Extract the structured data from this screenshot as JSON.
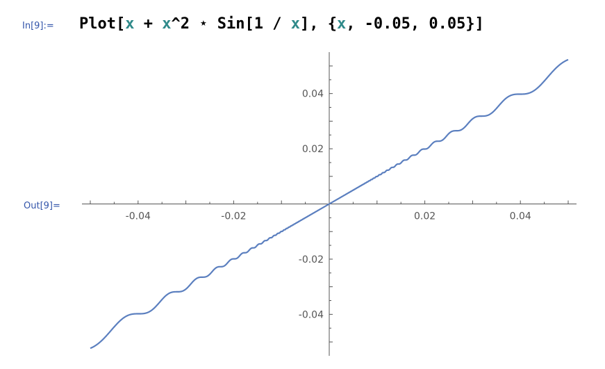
{
  "cell": {
    "in_label": "In[9]:=",
    "out_label": "Out[9]=",
    "input_tokens": [
      {
        "text": "Plot[",
        "kind": "func"
      },
      {
        "text": "x",
        "kind": "var"
      },
      {
        "text": " + ",
        "kind": "func"
      },
      {
        "text": "x",
        "kind": "var"
      },
      {
        "text": "^2 ",
        "kind": "func"
      },
      {
        "text": "⋆",
        "kind": "func"
      },
      {
        "text": " Sin[1 / ",
        "kind": "func"
      },
      {
        "text": "x",
        "kind": "var"
      },
      {
        "text": "], {",
        "kind": "func"
      },
      {
        "text": "x",
        "kind": "var"
      },
      {
        "text": ", -0.05, 0.05}]",
        "kind": "func"
      }
    ]
  },
  "chart_data": {
    "type": "line",
    "function": "x + x^2 * Sin[1/x]",
    "xlim": [
      -0.05,
      0.05
    ],
    "ylim": [
      -0.0525,
      0.0525
    ],
    "x_ticks": [
      {
        "value": -0.04,
        "label": "-0.04"
      },
      {
        "value": -0.02,
        "label": "-0.02"
      },
      {
        "value": 0.02,
        "label": "0.02"
      },
      {
        "value": 0.04,
        "label": "0.04"
      }
    ],
    "y_ticks": [
      {
        "value": 0.04,
        "label": "0.04"
      },
      {
        "value": 0.02,
        "label": "0.02"
      },
      {
        "value": -0.02,
        "label": "-0.02"
      },
      {
        "value": -0.04,
        "label": "-0.04"
      }
    ],
    "minor_tick_step": 0.005,
    "series_color": "#5b7fbf",
    "axis_color": "#555555",
    "grid": false
  }
}
